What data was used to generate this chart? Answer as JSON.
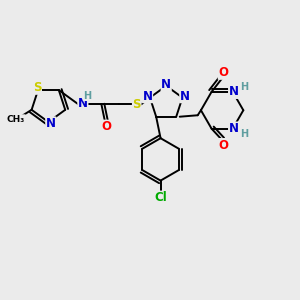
{
  "bg_color": "#ebebeb",
  "colors": {
    "N": "#0000cc",
    "O": "#ff0000",
    "S": "#cccc00",
    "Cl": "#00aa00",
    "H": "#5f9ea0",
    "C": "#000000",
    "bond": "#000000"
  },
  "font_size": 8.5,
  "font_size_small": 7.0,
  "lw": 1.4
}
